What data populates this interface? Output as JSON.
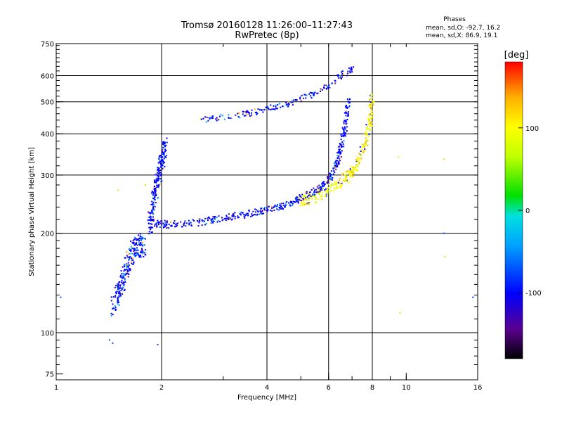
{
  "chart_data": {
    "type": "scatter",
    "title": "Tromsø 20160128 11:26:00–11:27:43",
    "subtitle": "RwPretec (8p)",
    "stats": {
      "header": "Phases",
      "line_o": "mean, sd,O: -92.7, 16.2",
      "line_x": "mean, sd,X:  86.9, 19.1"
    },
    "xlabel": "Frequency [MHz]",
    "ylabel": "Stationary phase Virtual Height [km]",
    "x_scale": "log",
    "y_scale": "log",
    "xlim": [
      1,
      16
    ],
    "ylim": [
      72,
      750
    ],
    "xticks": [
      1,
      2,
      4,
      6,
      8,
      10,
      16
    ],
    "xtick_labels": [
      "1",
      "2",
      "4",
      "6",
      "8",
      "10",
      "16"
    ],
    "yticks": [
      75,
      100,
      200,
      300,
      400,
      500,
      600,
      750
    ],
    "ytick_labels": [
      "75",
      "100",
      "200",
      "300",
      "400",
      "500",
      "600",
      "750"
    ],
    "x_gridlines": [
      2,
      4,
      6,
      8
    ],
    "y_gridlines": [
      100,
      200,
      300,
      400,
      500,
      600
    ],
    "grid": true,
    "colorbar": {
      "label": "[deg]",
      "min": -180,
      "max": 180,
      "ticks": [
        100,
        0,
        -100
      ],
      "tick_labels": [
        "100",
        "0",
        "-100"
      ]
    },
    "colors": {
      "o_mode": "#1a3cff",
      "x_mode": "#e8e000",
      "scale": [
        "#000000",
        "#5a0090",
        "#0000ff",
        "#00a0ff",
        "#00e0e0",
        "#00e000",
        "#c0ff00",
        "#ffff00",
        "#ffb000",
        "#ff0000"
      ]
    },
    "series": [
      {
        "mode": "O",
        "phase_deg": -100,
        "traces": [
          {
            "x": [
              1.45,
              1.52,
              1.58,
              1.65,
              1.72,
              1.78
            ],
            "y": [
              120,
              135,
              155,
              175,
              185,
              180
            ],
            "count": 260,
            "spread_y": 0.08
          },
          {
            "x": [
              1.85,
              1.9,
              1.95,
              2.0,
              2.05
            ],
            "y": [
              210,
              250,
              290,
              330,
              370
            ],
            "count": 220,
            "spread_y": 0.07
          },
          {
            "x": [
              1.9,
              2.1,
              2.5,
              3.0,
              3.5,
              4.0,
              4.5,
              5.0,
              5.5,
              6.0,
              6.3,
              6.5,
              6.7,
              6.9
            ],
            "y": [
              215,
              212,
              215,
              222,
              228,
              235,
              243,
              255,
              268,
              290,
              320,
              360,
              420,
              520
            ],
            "count": 520,
            "spread_y": 0.025
          },
          {
            "x": [
              2.6,
              3.0,
              3.5,
              4.0,
              4.5,
              5.0,
              5.5,
              6.0,
              6.5,
              7.0
            ],
            "y": [
              440,
              450,
              460,
              475,
              490,
              510,
              530,
              560,
              600,
              630
            ],
            "count": 180,
            "spread_y": 0.02
          },
          {
            "x": [
              1.03,
              1.42,
              1.45,
              1.95,
              12.8,
              15.5
            ],
            "y": [
              128,
              95,
              93,
              92,
              200,
              128
            ],
            "count": 6,
            "spread_y": 0.0
          }
        ]
      },
      {
        "mode": "X",
        "phase_deg": 87,
        "traces": [
          {
            "x": [
              5.0,
              5.5,
              6.0,
              6.5,
              7.0,
              7.4,
              7.7,
              7.9,
              8.0
            ],
            "y": [
              250,
              258,
              270,
              285,
              305,
              340,
              390,
              450,
              510
            ],
            "count": 320,
            "spread_y": 0.04
          },
          {
            "x": [
              1.5,
              1.8,
              9.5,
              9.6,
              12.8,
              12.9
            ],
            "y": [
              270,
              280,
              340,
              115,
              335,
              170
            ],
            "count": 6,
            "spread_y": 0.0
          }
        ]
      }
    ]
  }
}
